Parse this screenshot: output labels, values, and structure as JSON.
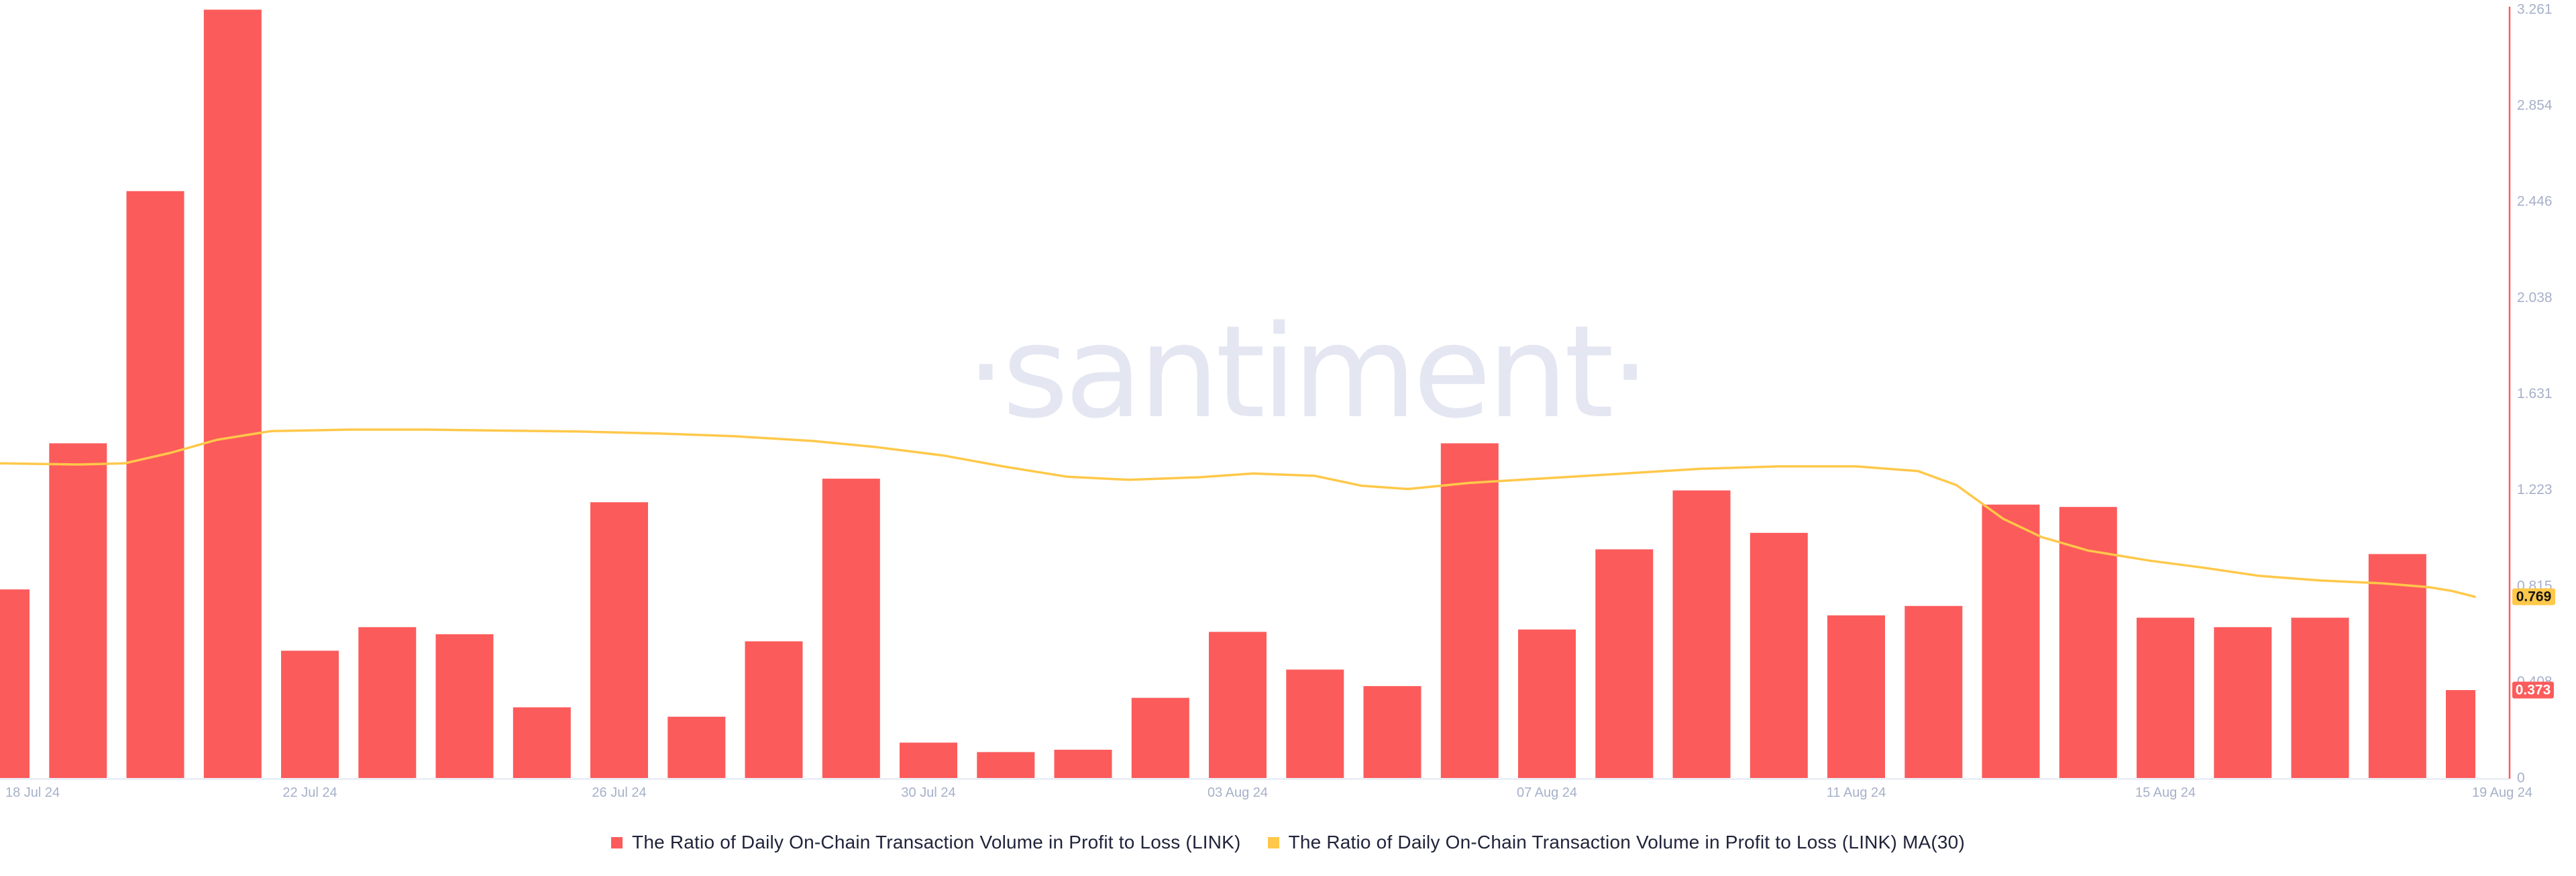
{
  "watermark": "·santiment·",
  "colors": {
    "bar": "#fc5b5b",
    "ma_line": "#ffc84a",
    "axis_line": "#fc5b5b",
    "axis_label": "#a6b0c9",
    "baseline": "#e8ebf4",
    "legend_text": "#20243a",
    "watermark": "#e4e7f2",
    "badge_bar_bg": "#fc5b5b",
    "badge_bar_text": "#ffffff",
    "badge_ma_bg": "#ffc84a",
    "badge_ma_text": "#151515"
  },
  "legend": {
    "items": [
      {
        "label": "The Ratio of Daily On-Chain Transaction Volume in Profit to Loss (LINK)",
        "color": "#fc5b5b"
      },
      {
        "label": "The Ratio of Daily On-Chain Transaction Volume in Profit to Loss (LINK) MA(30)",
        "color": "#ffc84a"
      }
    ]
  },
  "y_axis": {
    "tick_labels": [
      "0",
      "0.408",
      "0.815",
      "1.223",
      "1.631",
      "2.038",
      "2.446",
      "2.854",
      "3.261"
    ],
    "badges": {
      "bar_last": {
        "label": "0.373",
        "value": 0.373
      },
      "ma_last": {
        "label": "0.769",
        "value": 0.769
      }
    }
  },
  "x_axis": {
    "tick_labels": [
      "18 Jul 24",
      "22 Jul 24",
      "26 Jul 24",
      "30 Jul 24",
      "03 Aug 24",
      "07 Aug 24",
      "11 Aug 24",
      "15 Aug 24",
      "19 Aug 24"
    ]
  },
  "chart_data": {
    "type": "bar",
    "title": "",
    "xlabel": "",
    "ylabel": "",
    "ylim": [
      0,
      3.261
    ],
    "grid": false,
    "legend_position": "bottom-center",
    "categories": [
      "18 Jul 24",
      "19 Jul 24",
      "20 Jul 24",
      "21 Jul 24",
      "22 Jul 24",
      "23 Jul 24",
      "24 Jul 24",
      "25 Jul 24",
      "26 Jul 24",
      "27 Jul 24",
      "28 Jul 24",
      "29 Jul 24",
      "30 Jul 24",
      "31 Jul 24",
      "01 Aug 24",
      "02 Aug 24",
      "03 Aug 24",
      "04 Aug 24",
      "05 Aug 24",
      "06 Aug 24",
      "07 Aug 24",
      "08 Aug 24",
      "09 Aug 24",
      "10 Aug 24",
      "11 Aug 24",
      "12 Aug 24",
      "13 Aug 24",
      "14 Aug 24",
      "15 Aug 24",
      "16 Aug 24",
      "17 Aug 24",
      "18 Aug 24",
      "19 Aug 24"
    ],
    "series": [
      {
        "name": "The Ratio of Daily On-Chain Transaction Volume in Profit to Loss (LINK)",
        "type": "bar",
        "color": "#fc5b5b",
        "values": [
          0.8,
          1.42,
          2.49,
          3.26,
          0.54,
          0.64,
          0.61,
          0.3,
          1.17,
          0.26,
          0.58,
          1.27,
          0.15,
          0.11,
          0.12,
          0.34,
          0.62,
          0.46,
          0.39,
          1.42,
          0.63,
          0.97,
          1.22,
          1.04,
          0.69,
          0.73,
          1.16,
          1.15,
          0.68,
          0.64,
          0.68,
          0.95,
          0.373
        ]
      },
      {
        "name": "The Ratio of Daily On-Chain Transaction Volume in Profit to Loss (LINK) MA(30)",
        "type": "line",
        "color": "#ffc84a",
        "points": [
          [
            0,
            1.335
          ],
          [
            1,
            1.33
          ],
          [
            1.6,
            1.335
          ],
          [
            2.2,
            1.38
          ],
          [
            2.8,
            1.435
          ],
          [
            3.5,
            1.472
          ],
          [
            4.5,
            1.478
          ],
          [
            5.5,
            1.478
          ],
          [
            6.5,
            1.474
          ],
          [
            7.5,
            1.47
          ],
          [
            8.5,
            1.462
          ],
          [
            9.5,
            1.45
          ],
          [
            10.5,
            1.43
          ],
          [
            11.3,
            1.405
          ],
          [
            12.2,
            1.368
          ],
          [
            13,
            1.32
          ],
          [
            13.8,
            1.278
          ],
          [
            14.6,
            1.265
          ],
          [
            15.5,
            1.276
          ],
          [
            16.2,
            1.292
          ],
          [
            17,
            1.282
          ],
          [
            17.6,
            1.24
          ],
          [
            18.2,
            1.226
          ],
          [
            19,
            1.252
          ],
          [
            20,
            1.272
          ],
          [
            21,
            1.292
          ],
          [
            22,
            1.312
          ],
          [
            23,
            1.322
          ],
          [
            24,
            1.322
          ],
          [
            24.8,
            1.302
          ],
          [
            25.3,
            1.242
          ],
          [
            25.9,
            1.1
          ],
          [
            26.4,
            1.022
          ],
          [
            27,
            0.965
          ],
          [
            27.8,
            0.922
          ],
          [
            28.5,
            0.892
          ],
          [
            29.2,
            0.858
          ],
          [
            30,
            0.838
          ],
          [
            30.8,
            0.826
          ],
          [
            31.4,
            0.81
          ],
          [
            31.7,
            0.794
          ],
          [
            32,
            0.769
          ]
        ]
      }
    ],
    "x_tick_days": [
      0,
      4,
      8,
      12,
      16,
      20,
      24,
      28,
      32
    ],
    "y_tick_values": [
      0,
      0.408,
      0.815,
      1.223,
      1.631,
      2.038,
      2.446,
      2.854,
      3.261
    ]
  }
}
